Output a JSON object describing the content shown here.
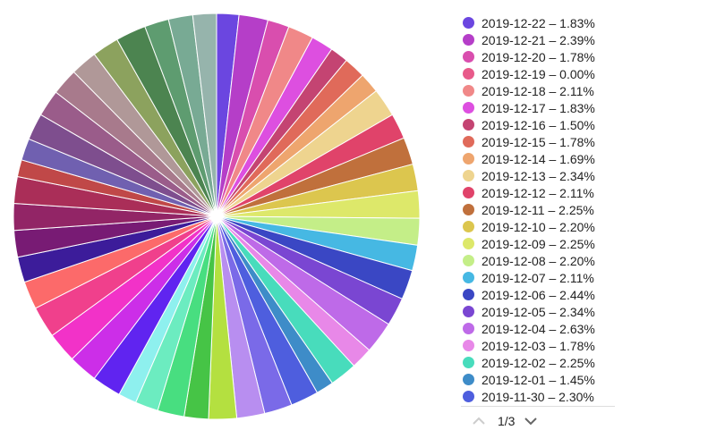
{
  "chart_data": {
    "type": "pie",
    "slices": [
      {
        "label": "2019-12-22",
        "value": 1.83,
        "color": "#6b46e0"
      },
      {
        "label": "2019-12-21",
        "value": 2.39,
        "color": "#b53ec8"
      },
      {
        "label": "2019-12-20",
        "value": 1.78,
        "color": "#d94eae"
      },
      {
        "label": "2019-12-19",
        "value": 0.0,
        "color": "#e85a8a"
      },
      {
        "label": "2019-12-18",
        "value": 2.11,
        "color": "#f08888"
      },
      {
        "label": "2019-12-17",
        "value": 1.83,
        "color": "#dd4fe0"
      },
      {
        "label": "2019-12-16",
        "value": 1.5,
        "color": "#c44472"
      },
      {
        "label": "2019-12-15",
        "value": 1.78,
        "color": "#e06a5a"
      },
      {
        "label": "2019-12-14",
        "value": 1.69,
        "color": "#eea56e"
      },
      {
        "label": "2019-12-13",
        "value": 2.34,
        "color": "#eed48f"
      },
      {
        "label": "2019-12-12",
        "value": 2.11,
        "color": "#e0436a"
      },
      {
        "label": "2019-12-11",
        "value": 2.25,
        "color": "#c0703c"
      },
      {
        "label": "2019-12-10",
        "value": 2.2,
        "color": "#dcc64e"
      },
      {
        "label": "2019-12-09",
        "value": 2.25,
        "color": "#dde86a"
      },
      {
        "label": "2019-12-08",
        "value": 2.2,
        "color": "#c4ee88"
      },
      {
        "label": "2019-12-07",
        "value": 2.11,
        "color": "#46b8e3"
      },
      {
        "label": "2019-12-06",
        "value": 2.44,
        "color": "#3a47c4"
      },
      {
        "label": "2019-12-05",
        "value": 2.34,
        "color": "#7a46d2"
      },
      {
        "label": "2019-12-04",
        "value": 2.63,
        "color": "#be6ae8"
      },
      {
        "label": "2019-12-03",
        "value": 1.78,
        "color": "#e888e8"
      },
      {
        "label": "2019-12-02",
        "value": 2.25,
        "color": "#48dcbc"
      },
      {
        "label": "2019-12-01",
        "value": 1.45,
        "color": "#3e8cc8"
      },
      {
        "label": "2019-11-30",
        "value": 2.3,
        "color": "#4e5ede"
      },
      {
        "value": 2.3,
        "color": "#7a6ae8"
      },
      {
        "value": 2.3,
        "color": "#b88ef0"
      },
      {
        "value": 2.3,
        "color": "#b4e040"
      },
      {
        "value": 2.0,
        "color": "#46c446"
      },
      {
        "value": 2.2,
        "color": "#48de80"
      },
      {
        "value": 1.9,
        "color": "#6cecc0"
      },
      {
        "value": 1.5,
        "color": "#8ef0ee"
      },
      {
        "value": 2.4,
        "color": "#6024f0"
      },
      {
        "value": 2.4,
        "color": "#cc2ee8"
      },
      {
        "value": 2.5,
        "color": "#f232c8"
      },
      {
        "value": 2.6,
        "color": "#f0408c"
      },
      {
        "value": 2.3,
        "color": "#fc6a6a"
      },
      {
        "value": 2.1,
        "color": "#3c1c9a"
      },
      {
        "value": 2.2,
        "color": "#781b74"
      },
      {
        "value": 2.2,
        "color": "#922566"
      },
      {
        "value": 2.2,
        "color": "#aa2e58"
      },
      {
        "value": 1.4,
        "color": "#c04848"
      },
      {
        "value": 1.8,
        "color": "#7060b0"
      },
      {
        "value": 2.2,
        "color": "#7e4e8e"
      },
      {
        "value": 2.2,
        "color": "#9a5c8a"
      },
      {
        "value": 2.2,
        "color": "#a87a8c"
      },
      {
        "value": 2.2,
        "color": "#b09898"
      },
      {
        "value": 2.2,
        "color": "#8ca25e"
      },
      {
        "value": 2.5,
        "color": "#4c8450"
      },
      {
        "value": 2.0,
        "color": "#5e9c70"
      },
      {
        "value": 2.0,
        "color": "#78aa94"
      },
      {
        "value": 1.95,
        "color": "#96b4ac"
      }
    ]
  },
  "legend": {
    "items": [
      {
        "text": "2019-12-22 – 1.83%",
        "color": "#6b46e0"
      },
      {
        "text": "2019-12-21 – 2.39%",
        "color": "#b53ec8"
      },
      {
        "text": "2019-12-20 – 1.78%",
        "color": "#d94eae"
      },
      {
        "text": "2019-12-19 – 0.00%",
        "color": "#e85a8a"
      },
      {
        "text": "2019-12-18 – 2.11%",
        "color": "#f08888"
      },
      {
        "text": "2019-12-17 – 1.83%",
        "color": "#dd4fe0"
      },
      {
        "text": "2019-12-16 – 1.50%",
        "color": "#c44472"
      },
      {
        "text": "2019-12-15 – 1.78%",
        "color": "#e06a5a"
      },
      {
        "text": "2019-12-14 – 1.69%",
        "color": "#eea56e"
      },
      {
        "text": "2019-12-13 – 2.34%",
        "color": "#eed48f"
      },
      {
        "text": "2019-12-12 – 2.11%",
        "color": "#e0436a"
      },
      {
        "text": "2019-12-11 – 2.25%",
        "color": "#c0703c"
      },
      {
        "text": "2019-12-10 – 2.20%",
        "color": "#dcc64e"
      },
      {
        "text": "2019-12-09 – 2.25%",
        "color": "#dde86a"
      },
      {
        "text": "2019-12-08 – 2.20%",
        "color": "#c4ee88"
      },
      {
        "text": "2019-12-07 – 2.11%",
        "color": "#46b8e3"
      },
      {
        "text": "2019-12-06 – 2.44%",
        "color": "#3a47c4"
      },
      {
        "text": "2019-12-05 – 2.34%",
        "color": "#7a46d2"
      },
      {
        "text": "2019-12-04 – 2.63%",
        "color": "#be6ae8"
      },
      {
        "text": "2019-12-03 – 1.78%",
        "color": "#e888e8"
      },
      {
        "text": "2019-12-02 – 2.25%",
        "color": "#48dcbc"
      },
      {
        "text": "2019-12-01 – 1.45%",
        "color": "#3e8cc8"
      },
      {
        "text": "2019-11-30 – 2.30%",
        "color": "#4e5ede"
      }
    ]
  },
  "pager": {
    "text": "1/3",
    "prev_icon": "chevron-up-icon",
    "next_icon": "chevron-down-icon"
  }
}
